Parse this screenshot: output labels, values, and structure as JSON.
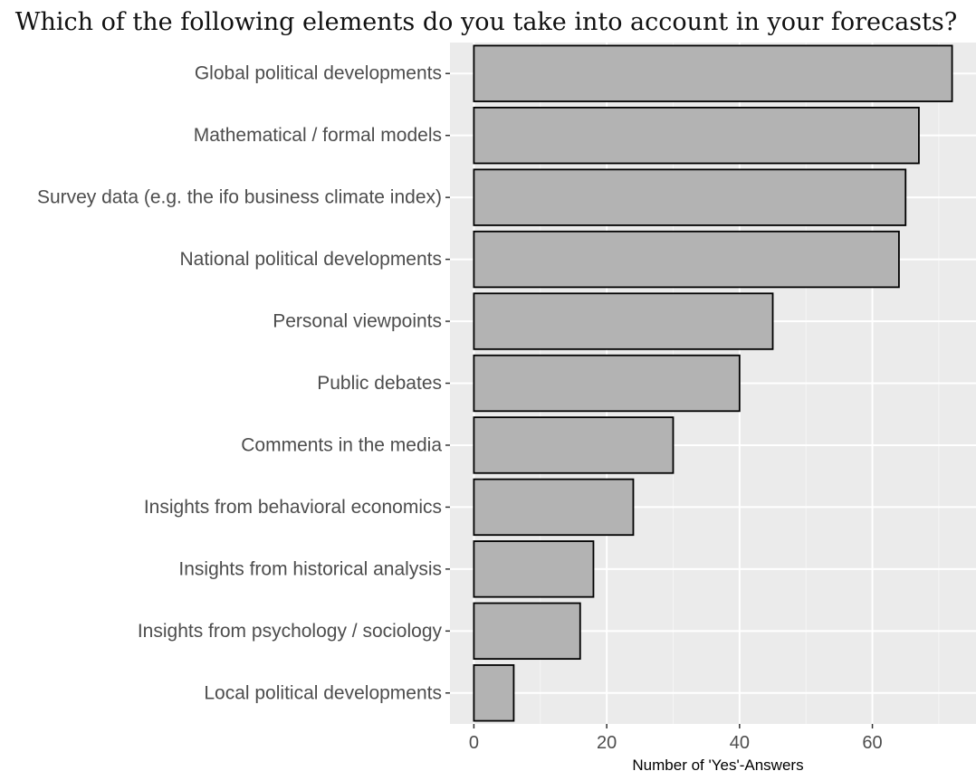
{
  "chart_data": {
    "type": "bar",
    "orientation": "horizontal",
    "title": "Which of the following elements do you take into account in your forecasts?",
    "xlabel": "Number of 'Yes'-Answers",
    "ylabel": "",
    "categories": [
      "Global political developments",
      "Mathematical / formal models",
      "Survey data (e.g. the ifo business climate index)",
      "National political developments",
      "Personal viewpoints",
      "Public debates",
      "Comments in the media",
      "Insights from behavioral economics",
      "Insights from historical analysis",
      "Insights from psychology / sociology",
      "Local political developments"
    ],
    "values": [
      72,
      67,
      65,
      64,
      45,
      40,
      30,
      24,
      18,
      16,
      6
    ],
    "xlim": [
      -3.6,
      75.6
    ],
    "xticks": [
      0,
      20,
      40,
      60
    ],
    "grid": true,
    "legend": "none",
    "colors": {
      "bar_fill": "#b3b3b3",
      "bar_stroke": "#000000",
      "panel_bg": "#ebebeb",
      "grid_major": "#ffffff",
      "grid_minor": "#f5f5f5"
    }
  }
}
